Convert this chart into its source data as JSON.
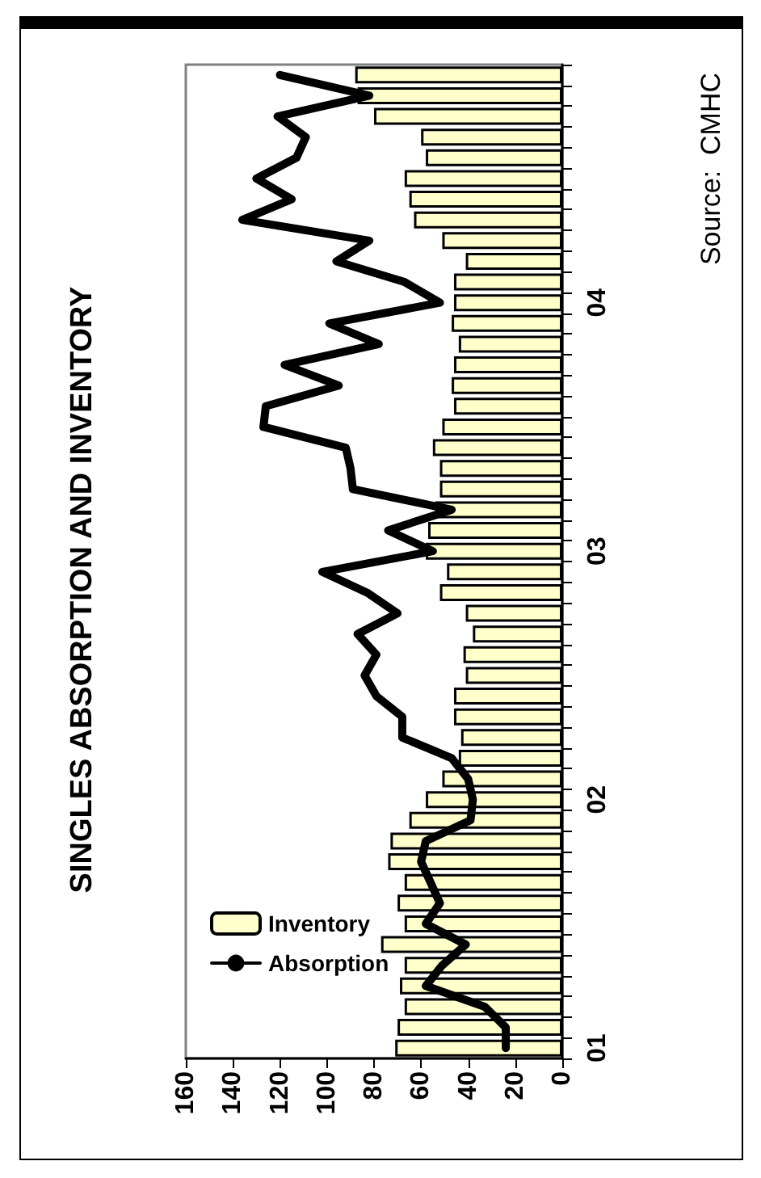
{
  "chart_data": {
    "type": "bar",
    "orientation": "horizontal",
    "title": "SINGLES ABSORPTION AND INVENTORY",
    "categories": [
      null,
      null,
      null,
      null,
      null,
      null,
      null,
      null,
      null,
      null,
      null,
      "04",
      null,
      null,
      null,
      null,
      null,
      null,
      null,
      null,
      null,
      null,
      null,
      "03",
      null,
      null,
      null,
      null,
      null,
      null,
      null,
      null,
      null,
      null,
      null,
      "02",
      null,
      null,
      null,
      null,
      null,
      null,
      null,
      null,
      null,
      null,
      null,
      "01"
    ],
    "series": [
      {
        "name": "Inventory",
        "color": "#ffffcc",
        "values": [
          88,
          87,
          80,
          60,
          58,
          67,
          65,
          63,
          51,
          41,
          46,
          46,
          47,
          44,
          46,
          47,
          46,
          51,
          55,
          52,
          52,
          54,
          57,
          58,
          49,
          52,
          41,
          38,
          42,
          41,
          46,
          46,
          43,
          44,
          51,
          58,
          65,
          73,
          74,
          67,
          70,
          67,
          77,
          67,
          69,
          67,
          70,
          71
        ]
      },
      {
        "name": "Absorption",
        "type": "line",
        "color": "#000000",
        "values": [
          120,
          82,
          121,
          109,
          113,
          130,
          115,
          136,
          82,
          96,
          67,
          52,
          99,
          78,
          118,
          95,
          126,
          127,
          92,
          90,
          89,
          47,
          74,
          55,
          102,
          83,
          70,
          87,
          79,
          84,
          79,
          68,
          68,
          47,
          40,
          38,
          39,
          58,
          60,
          56,
          52,
          58,
          41,
          51,
          58,
          33,
          24,
          24
        ]
      }
    ],
    "xlim": [
      160,
      0
    ],
    "xticks": [
      0,
      20,
      40,
      60,
      80,
      100,
      120,
      140,
      160
    ],
    "grid": false,
    "legend": "bottom left",
    "marker": "none",
    "line_style": "solid",
    "annotations": [
      "Source:  CMHC"
    ]
  }
}
